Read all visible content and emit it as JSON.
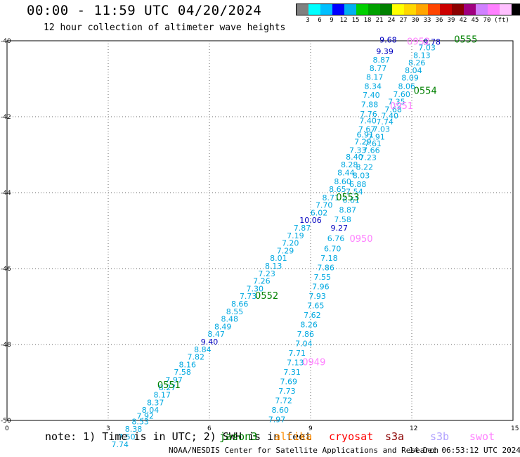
{
  "header": {
    "title": "00:00 - 11:59 UTC 04/20/2024",
    "subtitle": "12 hour collection of altimeter wave heights"
  },
  "legend": {
    "colors": [
      "#808080",
      "#00ffff",
      "#00bfff",
      "#0000ff",
      "#00b0f0",
      "#00d000",
      "#00a000",
      "#008000",
      "#ffff00",
      "#ffd700",
      "#ffa500",
      "#ff4500",
      "#cc0000",
      "#8b0000",
      "#a00080",
      "#d080ff",
      "#ff80ff",
      "#ffc0ff",
      "#000000"
    ],
    "labels": [
      "3",
      "6",
      "9",
      "12",
      "15",
      "18",
      "21",
      "24",
      "27",
      "30",
      "33",
      "36",
      "39",
      "42",
      "45",
      "70",
      "(ft)"
    ]
  },
  "note": "note: 1) Time is in UTC; 2) SWH is in feet",
  "missions": [
    {
      "name": "jason3",
      "color": "#008000"
    },
    {
      "name": "altika",
      "color": "#ff8c00"
    },
    {
      "name": "cryosat",
      "color": "#ff0000"
    },
    {
      "name": "s3a",
      "color": "#8b0000"
    },
    {
      "name": "s3b",
      "color": "#b0a0ff"
    },
    {
      "name": "swot",
      "color": "#ff80ff"
    }
  ],
  "footer": {
    "credit": "NOAA/NESDIS Center for Satellite Applications and Research",
    "timestamp": "14 Dec 06:53:12 UTC 2024"
  },
  "chart_data": {
    "type": "scatter",
    "title": "00:00 - 11:59 UTC 04/20/2024",
    "subtitle": "12 hour collection of altimeter wave heights",
    "xlim": [
      0,
      15
    ],
    "ylim": [
      -50,
      -40
    ],
    "x_ticks": [
      "0",
      "3",
      "6",
      "9",
      "12",
      "15"
    ],
    "y_ticks": [
      "-40",
      "-42",
      "-44",
      "-46",
      "-48",
      "-50"
    ],
    "grid": true,
    "track_labels": [
      {
        "text": "0555",
        "x": 13.6,
        "y": -40.05,
        "color": "#008000"
      },
      {
        "text": "0554",
        "x": 12.4,
        "y": -41.4,
        "color": "#008000"
      },
      {
        "text": "0553",
        "x": 10.1,
        "y": -44.2,
        "color": "#008000"
      },
      {
        "text": "0552",
        "x": 7.7,
        "y": -46.8,
        "color": "#008000"
      },
      {
        "text": "0551",
        "x": 4.8,
        "y": -49.15,
        "color": "#008000"
      },
      {
        "text": "0952",
        "x": 12.2,
        "y": -40.1,
        "color": "#ff80ff"
      },
      {
        "text": "0951",
        "x": 11.7,
        "y": -41.8,
        "color": "#ff80ff"
      },
      {
        "text": "0950",
        "x": 10.5,
        "y": -45.3,
        "color": "#ff80ff"
      },
      {
        "text": "0949",
        "x": 9.1,
        "y": -48.55,
        "color": "#ff80ff"
      }
    ],
    "series": [
      {
        "name": "jason3",
        "color": "#00a8e0",
        "points": [
          {
            "x": 11.3,
            "y": -40.05,
            "v": "9.68"
          },
          {
            "x": 11.2,
            "y": -40.35,
            "v": "9.39"
          },
          {
            "x": 11.1,
            "y": -40.57,
            "v": "8.87"
          },
          {
            "x": 11.0,
            "y": -40.8,
            "v": "8.77"
          },
          {
            "x": 10.9,
            "y": -41.03,
            "v": "8.17"
          },
          {
            "x": 10.85,
            "y": -41.27,
            "v": "8.34"
          },
          {
            "x": 10.8,
            "y": -41.5,
            "v": "7.40"
          },
          {
            "x": 10.75,
            "y": -41.75,
            "v": "7.88"
          },
          {
            "x": 10.72,
            "y": -42.0,
            "v": "7.76"
          },
          {
            "x": 10.7,
            "y": -42.18,
            "v": "7.40"
          },
          {
            "x": 10.67,
            "y": -42.4,
            "v": "7.67"
          },
          {
            "x": 10.62,
            "y": -42.55,
            "v": "6.91"
          },
          {
            "x": 10.55,
            "y": -42.73,
            "v": "7.29"
          },
          {
            "x": 10.4,
            "y": -42.95,
            "v": "7.33"
          },
          {
            "x": 10.3,
            "y": -43.13,
            "v": "8.40"
          },
          {
            "x": 10.15,
            "y": -43.33,
            "v": "8.28"
          },
          {
            "x": 10.05,
            "y": -43.55,
            "v": "8.44"
          },
          {
            "x": 9.95,
            "y": -43.78,
            "v": "8.60"
          },
          {
            "x": 9.8,
            "y": -43.98,
            "v": "8.65"
          },
          {
            "x": 9.6,
            "y": -44.2,
            "v": "8.71"
          },
          {
            "x": 9.4,
            "y": -44.4,
            "v": "7.70"
          },
          {
            "x": 9.25,
            "y": -44.6,
            "v": "6.02"
          },
          {
            "x": 9.0,
            "y": -44.8,
            "v": "10.06"
          },
          {
            "x": 8.75,
            "y": -45.0,
            "v": "7.87"
          },
          {
            "x": 8.55,
            "y": -45.2,
            "v": "7.19"
          },
          {
            "x": 8.4,
            "y": -45.4,
            "v": "7.20"
          },
          {
            "x": 8.25,
            "y": -45.6,
            "v": "7.29"
          },
          {
            "x": 8.05,
            "y": -45.8,
            "v": "8.01"
          },
          {
            "x": 7.9,
            "y": -46.0,
            "v": "8.13"
          },
          {
            "x": 7.7,
            "y": -46.2,
            "v": "7.23"
          },
          {
            "x": 7.55,
            "y": -46.4,
            "v": "7.26"
          },
          {
            "x": 7.35,
            "y": -46.6,
            "v": "7.30"
          },
          {
            "x": 7.15,
            "y": -46.8,
            "v": "7.73"
          },
          {
            "x": 6.9,
            "y": -47.0,
            "v": "8.66"
          },
          {
            "x": 6.75,
            "y": -47.2,
            "v": "8.55"
          },
          {
            "x": 6.6,
            "y": -47.4,
            "v": "8.48"
          },
          {
            "x": 6.4,
            "y": -47.6,
            "v": "8.49"
          },
          {
            "x": 6.2,
            "y": -47.8,
            "v": "8.47"
          },
          {
            "x": 6.0,
            "y": -48.0,
            "v": "9.40"
          },
          {
            "x": 5.8,
            "y": -48.2,
            "v": "8.84"
          },
          {
            "x": 5.6,
            "y": -48.4,
            "v": "7.82"
          },
          {
            "x": 5.35,
            "y": -48.6,
            "v": "8.16"
          },
          {
            "x": 5.2,
            "y": -48.8,
            "v": "7.58"
          },
          {
            "x": 4.95,
            "y": -49.0,
            "v": "7.97"
          },
          {
            "x": 4.75,
            "y": -49.2,
            "v": "8.27"
          },
          {
            "x": 4.6,
            "y": -49.4,
            "v": "8.17"
          },
          {
            "x": 4.4,
            "y": -49.6,
            "v": "8.37"
          },
          {
            "x": 4.25,
            "y": -49.8,
            "v": "8.04"
          },
          {
            "x": 4.1,
            "y": -49.95,
            "v": "7.92"
          },
          {
            "x": 3.95,
            "y": -50.1,
            "v": "8.53"
          },
          {
            "x": 3.75,
            "y": -50.3,
            "v": "8.38"
          },
          {
            "x": 3.55,
            "y": -50.5,
            "v": "7.50"
          },
          {
            "x": 3.35,
            "y": -50.7,
            "v": "7.74"
          }
        ]
      },
      {
        "name": "swot",
        "color": "#00a8e0",
        "points": [
          {
            "x": 12.6,
            "y": -40.1,
            "v": "9.78"
          },
          {
            "x": 12.45,
            "y": -40.25,
            "v": "7.03"
          },
          {
            "x": 12.3,
            "y": -40.45,
            "v": "8.13"
          },
          {
            "x": 12.15,
            "y": -40.65,
            "v": "8.26"
          },
          {
            "x": 12.05,
            "y": -40.85,
            "v": "8.04"
          },
          {
            "x": 11.95,
            "y": -41.05,
            "v": "8.09"
          },
          {
            "x": 11.85,
            "y": -41.27,
            "v": "8.06"
          },
          {
            "x": 11.7,
            "y": -41.48,
            "v": "7.60"
          },
          {
            "x": 11.55,
            "y": -41.68,
            "v": "7.35"
          },
          {
            "x": 11.45,
            "y": -41.88,
            "v": "7.68"
          },
          {
            "x": 11.35,
            "y": -42.05,
            "v": "7.40"
          },
          {
            "x": 11.2,
            "y": -42.2,
            "v": "7.74"
          },
          {
            "x": 11.1,
            "y": -42.4,
            "v": "7.03"
          },
          {
            "x": 10.95,
            "y": -42.6,
            "v": "7.91"
          },
          {
            "x": 10.85,
            "y": -42.78,
            "v": "7.61"
          },
          {
            "x": 10.8,
            "y": -42.95,
            "v": "7.66"
          },
          {
            "x": 10.7,
            "y": -43.15,
            "v": "7.23"
          },
          {
            "x": 10.6,
            "y": -43.4,
            "v": "8.22"
          },
          {
            "x": 10.5,
            "y": -43.62,
            "v": "8.03"
          },
          {
            "x": 10.4,
            "y": -43.85,
            "v": "6.88"
          },
          {
            "x": 10.3,
            "y": -44.05,
            "v": "7.54"
          },
          {
            "x": 10.2,
            "y": -44.27,
            "v": "6.61"
          },
          {
            "x": 10.1,
            "y": -44.53,
            "v": "8.87"
          },
          {
            "x": 9.95,
            "y": -44.78,
            "v": "7.58"
          },
          {
            "x": 9.85,
            "y": -45.0,
            "v": "9.27"
          },
          {
            "x": 9.75,
            "y": -45.28,
            "v": "6.76"
          },
          {
            "x": 9.65,
            "y": -45.55,
            "v": "6.70"
          },
          {
            "x": 9.55,
            "y": -45.8,
            "v": "7.18"
          },
          {
            "x": 9.45,
            "y": -46.05,
            "v": "7.86"
          },
          {
            "x": 9.35,
            "y": -46.3,
            "v": "7.55"
          },
          {
            "x": 9.3,
            "y": -46.55,
            "v": "7.96"
          },
          {
            "x": 9.2,
            "y": -46.8,
            "v": "7.93"
          },
          {
            "x": 9.15,
            "y": -47.05,
            "v": "7.65"
          },
          {
            "x": 9.05,
            "y": -47.3,
            "v": "7.62"
          },
          {
            "x": 8.95,
            "y": -47.55,
            "v": "8.26"
          },
          {
            "x": 8.85,
            "y": -47.8,
            "v": "7.86"
          },
          {
            "x": 8.8,
            "y": -48.05,
            "v": "7.04"
          },
          {
            "x": 8.6,
            "y": -48.3,
            "v": "7.71"
          },
          {
            "x": 8.55,
            "y": -48.55,
            "v": "7.13"
          },
          {
            "x": 8.45,
            "y": -48.8,
            "v": "7.31"
          },
          {
            "x": 8.35,
            "y": -49.05,
            "v": "7.69"
          },
          {
            "x": 8.3,
            "y": -49.3,
            "v": "7.73"
          },
          {
            "x": 8.2,
            "y": -49.55,
            "v": "7.72"
          },
          {
            "x": 8.1,
            "y": -49.8,
            "v": "8.60"
          },
          {
            "x": 8.0,
            "y": -50.05,
            "v": "7.97"
          }
        ]
      }
    ]
  }
}
